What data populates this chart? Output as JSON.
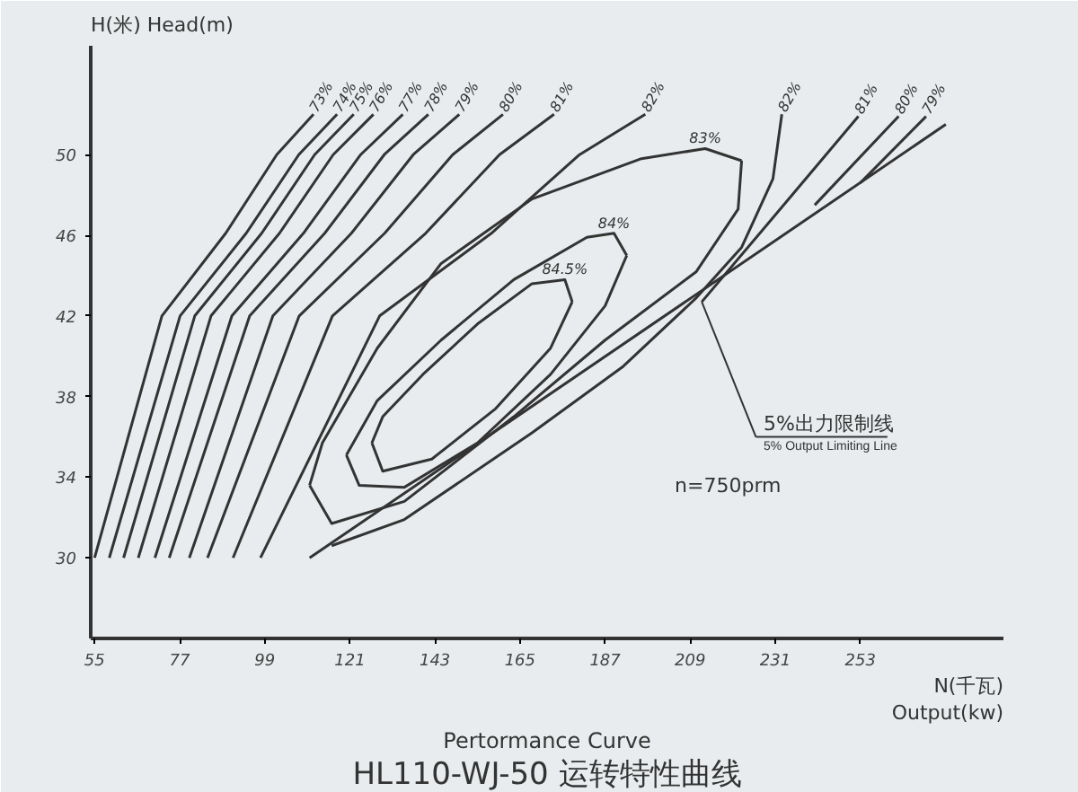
{
  "chart_data": {
    "type": "line",
    "title": "HL110-WJ-50 运转特性曲线",
    "subtitle": "Pertormance Curve",
    "xlabel": "N(千瓦)\nOutput(kw)",
    "ylabel": "H(米)  Head(m)",
    "xlim": [
      54,
      290
    ],
    "ylim": [
      26,
      55.4
    ],
    "xticks": [
      55,
      77,
      99,
      121,
      143,
      165,
      187,
      209,
      231,
      253
    ],
    "yticks": [
      30,
      34,
      38,
      42,
      46,
      50
    ],
    "grid": false,
    "marker": "none",
    "line_style": "solid",
    "annotations": [
      {
        "text": "5%出力限制线\n5% Output Limiting Line",
        "x": 212.0,
        "y": 42.7
      },
      "n=750prm"
    ],
    "series": [
      {
        "name": "73%",
        "color": "#333333",
        "x": [
          55,
          72.4,
          88.9,
          102.1,
          111.6
        ],
        "values": [
          30,
          42.0,
          46.1,
          50.0,
          52.0
        ]
      },
      {
        "name": "74%",
        "color": "#333333",
        "x": [
          58.8,
          77.1,
          94.2,
          107.8,
          117.7
        ],
        "values": [
          30,
          42.0,
          46.1,
          50.0,
          52.0
        ]
      },
      {
        "name": "75%",
        "color": "#333333",
        "x": [
          62.5,
          80.9,
          98.2,
          111.9,
          122.0
        ],
        "values": [
          30,
          42.0,
          46.1,
          50.0,
          52.0
        ]
      },
      {
        "name": "76%",
        "color": "#333333",
        "x": [
          66.3,
          85.1,
          102.8,
          116.7,
          127.1
        ],
        "values": [
          30,
          42.0,
          46.1,
          50.0,
          52.0
        ]
      },
      {
        "name": "77%",
        "color": "#333333",
        "x": [
          70.6,
          90.5,
          109.0,
          123.8,
          134.7
        ],
        "values": [
          30,
          42.0,
          46.1,
          50.0,
          52.0
        ]
      },
      {
        "name": "78%",
        "color": "#333333",
        "x": [
          74.3,
          95.1,
          114.5,
          129.9,
          141.3
        ],
        "values": [
          30,
          42.0,
          46.1,
          50.0,
          52.0
        ]
      },
      {
        "name": "79%",
        "color": "#333333",
        "x": [
          79.5,
          101.1,
          121.4,
          137.4,
          149.3
        ],
        "values": [
          30,
          42.0,
          46.1,
          50.0,
          52.0
        ]
      },
      {
        "name": "80%",
        "color": "#333333",
        "x": [
          84.2,
          107.9,
          130.0,
          147.6,
          160.6
        ],
        "values": [
          30,
          42.0,
          46.1,
          50.0,
          52.0
        ]
      },
      {
        "name": "81%",
        "color": "#333333",
        "x": [
          90.8,
          116.5,
          140.6,
          159.7,
          173.8
        ],
        "values": [
          30,
          42.0,
          46.1,
          50.0,
          52.0
        ]
      },
      {
        "name": "82%",
        "color": "#333333",
        "x": [
          97.9,
          128.7,
          157.6,
          180.4,
          197.4
        ],
        "values": [
          30,
          42.0,
          46.1,
          50.0,
          52.0
        ]
      },
      {
        "name": "83%",
        "color": "#333333",
        "x": [
          110.6,
          113.9,
          128.1,
          144.6,
          168.1,
          196.4,
          212.9,
          222.3
        ],
        "values": [
          33.6,
          35.7,
          40.4,
          44.6,
          47.8,
          49.8,
          50.3,
          49.7
        ]
      },
      {
        "color": "#333333",
        "x": [
          110.6,
          116.3,
          135.1,
          163.4,
          187.0,
          210.6,
          221.4,
          222.3
        ],
        "values": [
          33.6,
          31.7,
          32.8,
          37.0,
          40.8,
          44.2,
          47.3,
          49.7
        ]
      },
      {
        "name": "84%",
        "color": "#333333",
        "x": [
          120.1,
          128.1,
          144.6,
          163.4,
          182.3,
          189.3,
          192.6
        ],
        "values": [
          35.1,
          37.8,
          40.8,
          43.8,
          45.9,
          46.1,
          45.0
        ]
      },
      {
        "color": "#333333",
        "x": [
          120.1,
          123.4,
          135.1,
          154.0,
          172.9,
          187.0,
          192.6
        ],
        "values": [
          35.1,
          33.6,
          33.5,
          35.7,
          39.1,
          42.5,
          45.0
        ]
      },
      {
        "name": "84.5%",
        "color": "#333333",
        "x": [
          126.7,
          129.5,
          139.9,
          154.0,
          168.1,
          176.6,
          178.5
        ],
        "values": [
          35.7,
          37.0,
          39.1,
          41.6,
          43.6,
          43.8,
          42.7
        ]
      },
      {
        "color": "#333333",
        "x": [
          126.7,
          129.5,
          142.2,
          158.7,
          172.9,
          178.5
        ],
        "values": [
          35.7,
          34.3,
          34.9,
          37.4,
          40.4,
          42.7
        ]
      },
      {
        "name": "82%",
        "color": "#333333",
        "x": [
          116.3,
          135.1,
          168.1,
          191.7,
          210.6,
          222.3,
          230.4,
          232.7
        ],
        "values": [
          30.6,
          31.9,
          36.2,
          39.5,
          42.9,
          45.4,
          48.8,
          52.0
        ]
      },
      {
        "name": "81%",
        "color": "#333333",
        "x": [
          212.0,
          232.3,
          252.5
        ],
        "values": [
          42.7,
          47.3,
          51.9
        ]
      },
      {
        "name": "80%",
        "color": "#333333",
        "x": [
          241.2,
          262.9
        ],
        "values": [
          47.5,
          51.9
        ]
      },
      {
        "name": "79%",
        "color": "#333333",
        "x": [
          253.0,
          270.0
        ],
        "values": [
          48.6,
          51.9
        ]
      },
      {
        "color": "#333333",
        "x": [
          110.6,
          275.1
        ],
        "values": [
          30,
          51.5
        ]
      }
    ]
  }
}
